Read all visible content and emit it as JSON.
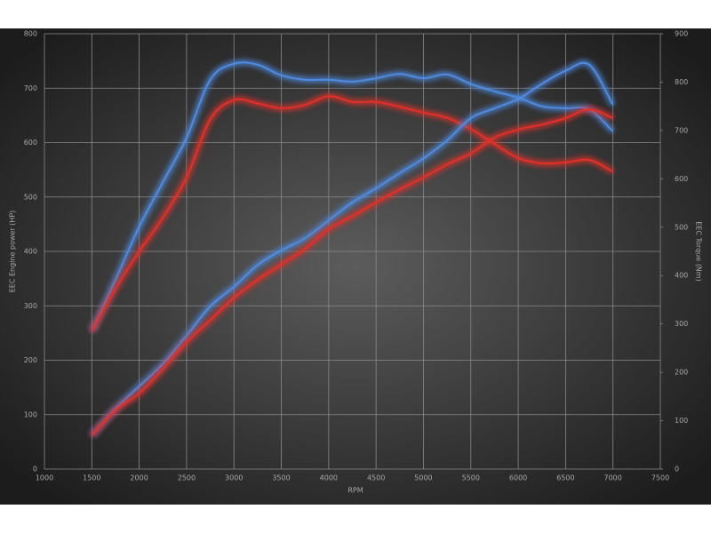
{
  "chart_data": {
    "type": "line",
    "x_label": "RPM",
    "y_label": "EEC Engine power (HP)",
    "y2_label": "EEC Torque (Nm)",
    "x": [
      1500,
      1750,
      2000,
      2250,
      2500,
      2750,
      3000,
      3250,
      3500,
      3750,
      4000,
      4250,
      4500,
      4750,
      5000,
      5250,
      5500,
      5750,
      6000,
      6250,
      6500,
      6750,
      7000
    ],
    "series": [
      {
        "color": "#4f8be0",
        "axis": "y2",
        "values": [
          285,
          391,
          501,
          593,
          685,
          805,
          838,
          836,
          814,
          805,
          805,
          801,
          808,
          817,
          808,
          816,
          796,
          781,
          768,
          750,
          746,
          744,
          698
        ]
      },
      {
        "color": "#e23029",
        "axis": "y2",
        "values": [
          285,
          373,
          450,
          520,
          603,
          723,
          763,
          756,
          746,
          753,
          771,
          759,
          759,
          749,
          737,
          726,
          703,
          672,
          643,
          632,
          634,
          639,
          615
        ]
      },
      {
        "color": "#4f8be0",
        "axis": "y",
        "values": [
          62,
          111,
          152,
          193,
          245,
          299,
          335,
          375,
          402,
          424,
          457,
          490,
          516,
          544,
          571,
          604,
          645,
          663,
          680,
          708,
          732,
          743,
          669
        ]
      },
      {
        "color": "#e23029",
        "axis": "y",
        "values": [
          62,
          108,
          139,
          184,
          233,
          274,
          315,
          348,
          376,
          405,
          441,
          465,
          490,
          514,
          536,
          560,
          580,
          609,
          624,
          633,
          645,
          661,
          645
        ]
      }
    ],
    "xlim": [
      1000,
      7500
    ],
    "xticks": [
      1000,
      1500,
      2000,
      2500,
      3000,
      3500,
      4000,
      4500,
      5000,
      5500,
      6000,
      6500,
      7000,
      7500
    ],
    "ylim": [
      0,
      800
    ],
    "yticks": [
      0,
      100,
      200,
      300,
      400,
      500,
      600,
      700,
      800
    ],
    "y2lim": [
      0,
      900
    ],
    "y2ticks": [
      0,
      100,
      200,
      300,
      400,
      500,
      600,
      700,
      800,
      900
    ],
    "grid": true
  }
}
